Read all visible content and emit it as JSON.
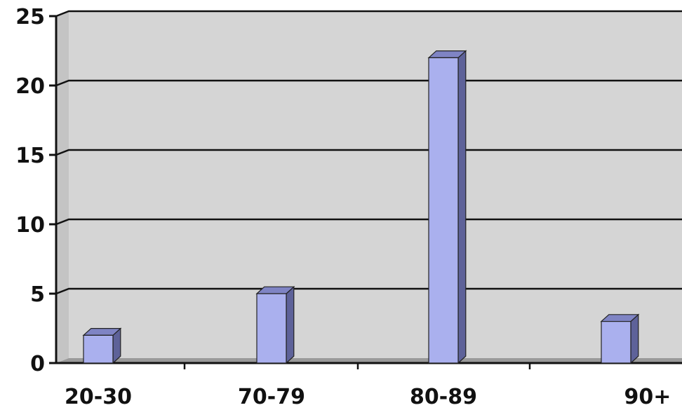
{
  "chart_data": {
    "type": "bar",
    "categories": [
      "20-30",
      "70-79",
      "80-89",
      "90+"
    ],
    "values": [
      2,
      5,
      22,
      3
    ],
    "title": "",
    "xlabel": "",
    "ylabel": "",
    "ylim": [
      0,
      25
    ],
    "yticks": [
      "0",
      "5",
      "10",
      "15",
      "20",
      "25"
    ],
    "grid": true,
    "style": "3d-column",
    "colors": {
      "bar_front": "#aab0ee",
      "bar_side": "#5e6299",
      "bar_top": "#7f84c4",
      "wall": "#d5d5d5",
      "floor": "#9a9a9a",
      "gridline": "#111111"
    }
  }
}
